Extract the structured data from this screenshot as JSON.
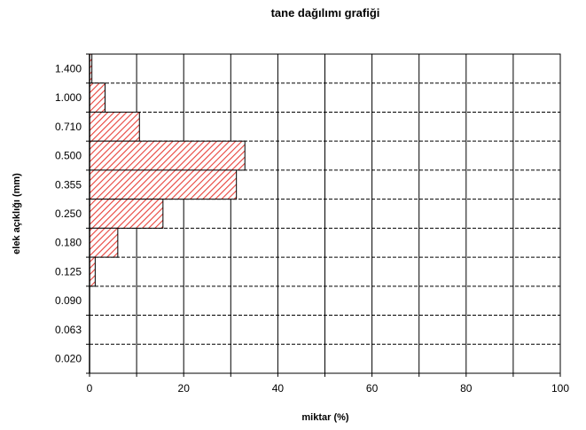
{
  "chart_data": {
    "type": "bar",
    "orientation": "horizontal",
    "title": "tane dağılımı grafiği",
    "xlabel": "miktar (%)",
    "ylabel": "elek açıklığı (mm)",
    "xlim": [
      0,
      100
    ],
    "x_ticks": [
      0,
      10,
      20,
      30,
      40,
      50,
      60,
      70,
      80,
      90,
      100
    ],
    "x_tick_labels": [
      "0",
      "20",
      "40",
      "60",
      "80",
      "100"
    ],
    "x_tick_label_values": [
      0,
      20,
      40,
      60,
      80,
      100
    ],
    "categories": [
      "1.400",
      "1.000",
      "0.710",
      "0.500",
      "0.355",
      "0.250",
      "0.180",
      "0.125",
      "0.090",
      "0.063",
      "0.020"
    ],
    "values": [
      0.5,
      3.3,
      10.6,
      33.0,
      31.2,
      15.6,
      6.0,
      1.2,
      0,
      0,
      0
    ],
    "bar_fill": "hatched",
    "bar_color": "#e8413a",
    "grid": {
      "vertical": "solid",
      "horizontal": "dashed"
    },
    "legend": "none"
  }
}
